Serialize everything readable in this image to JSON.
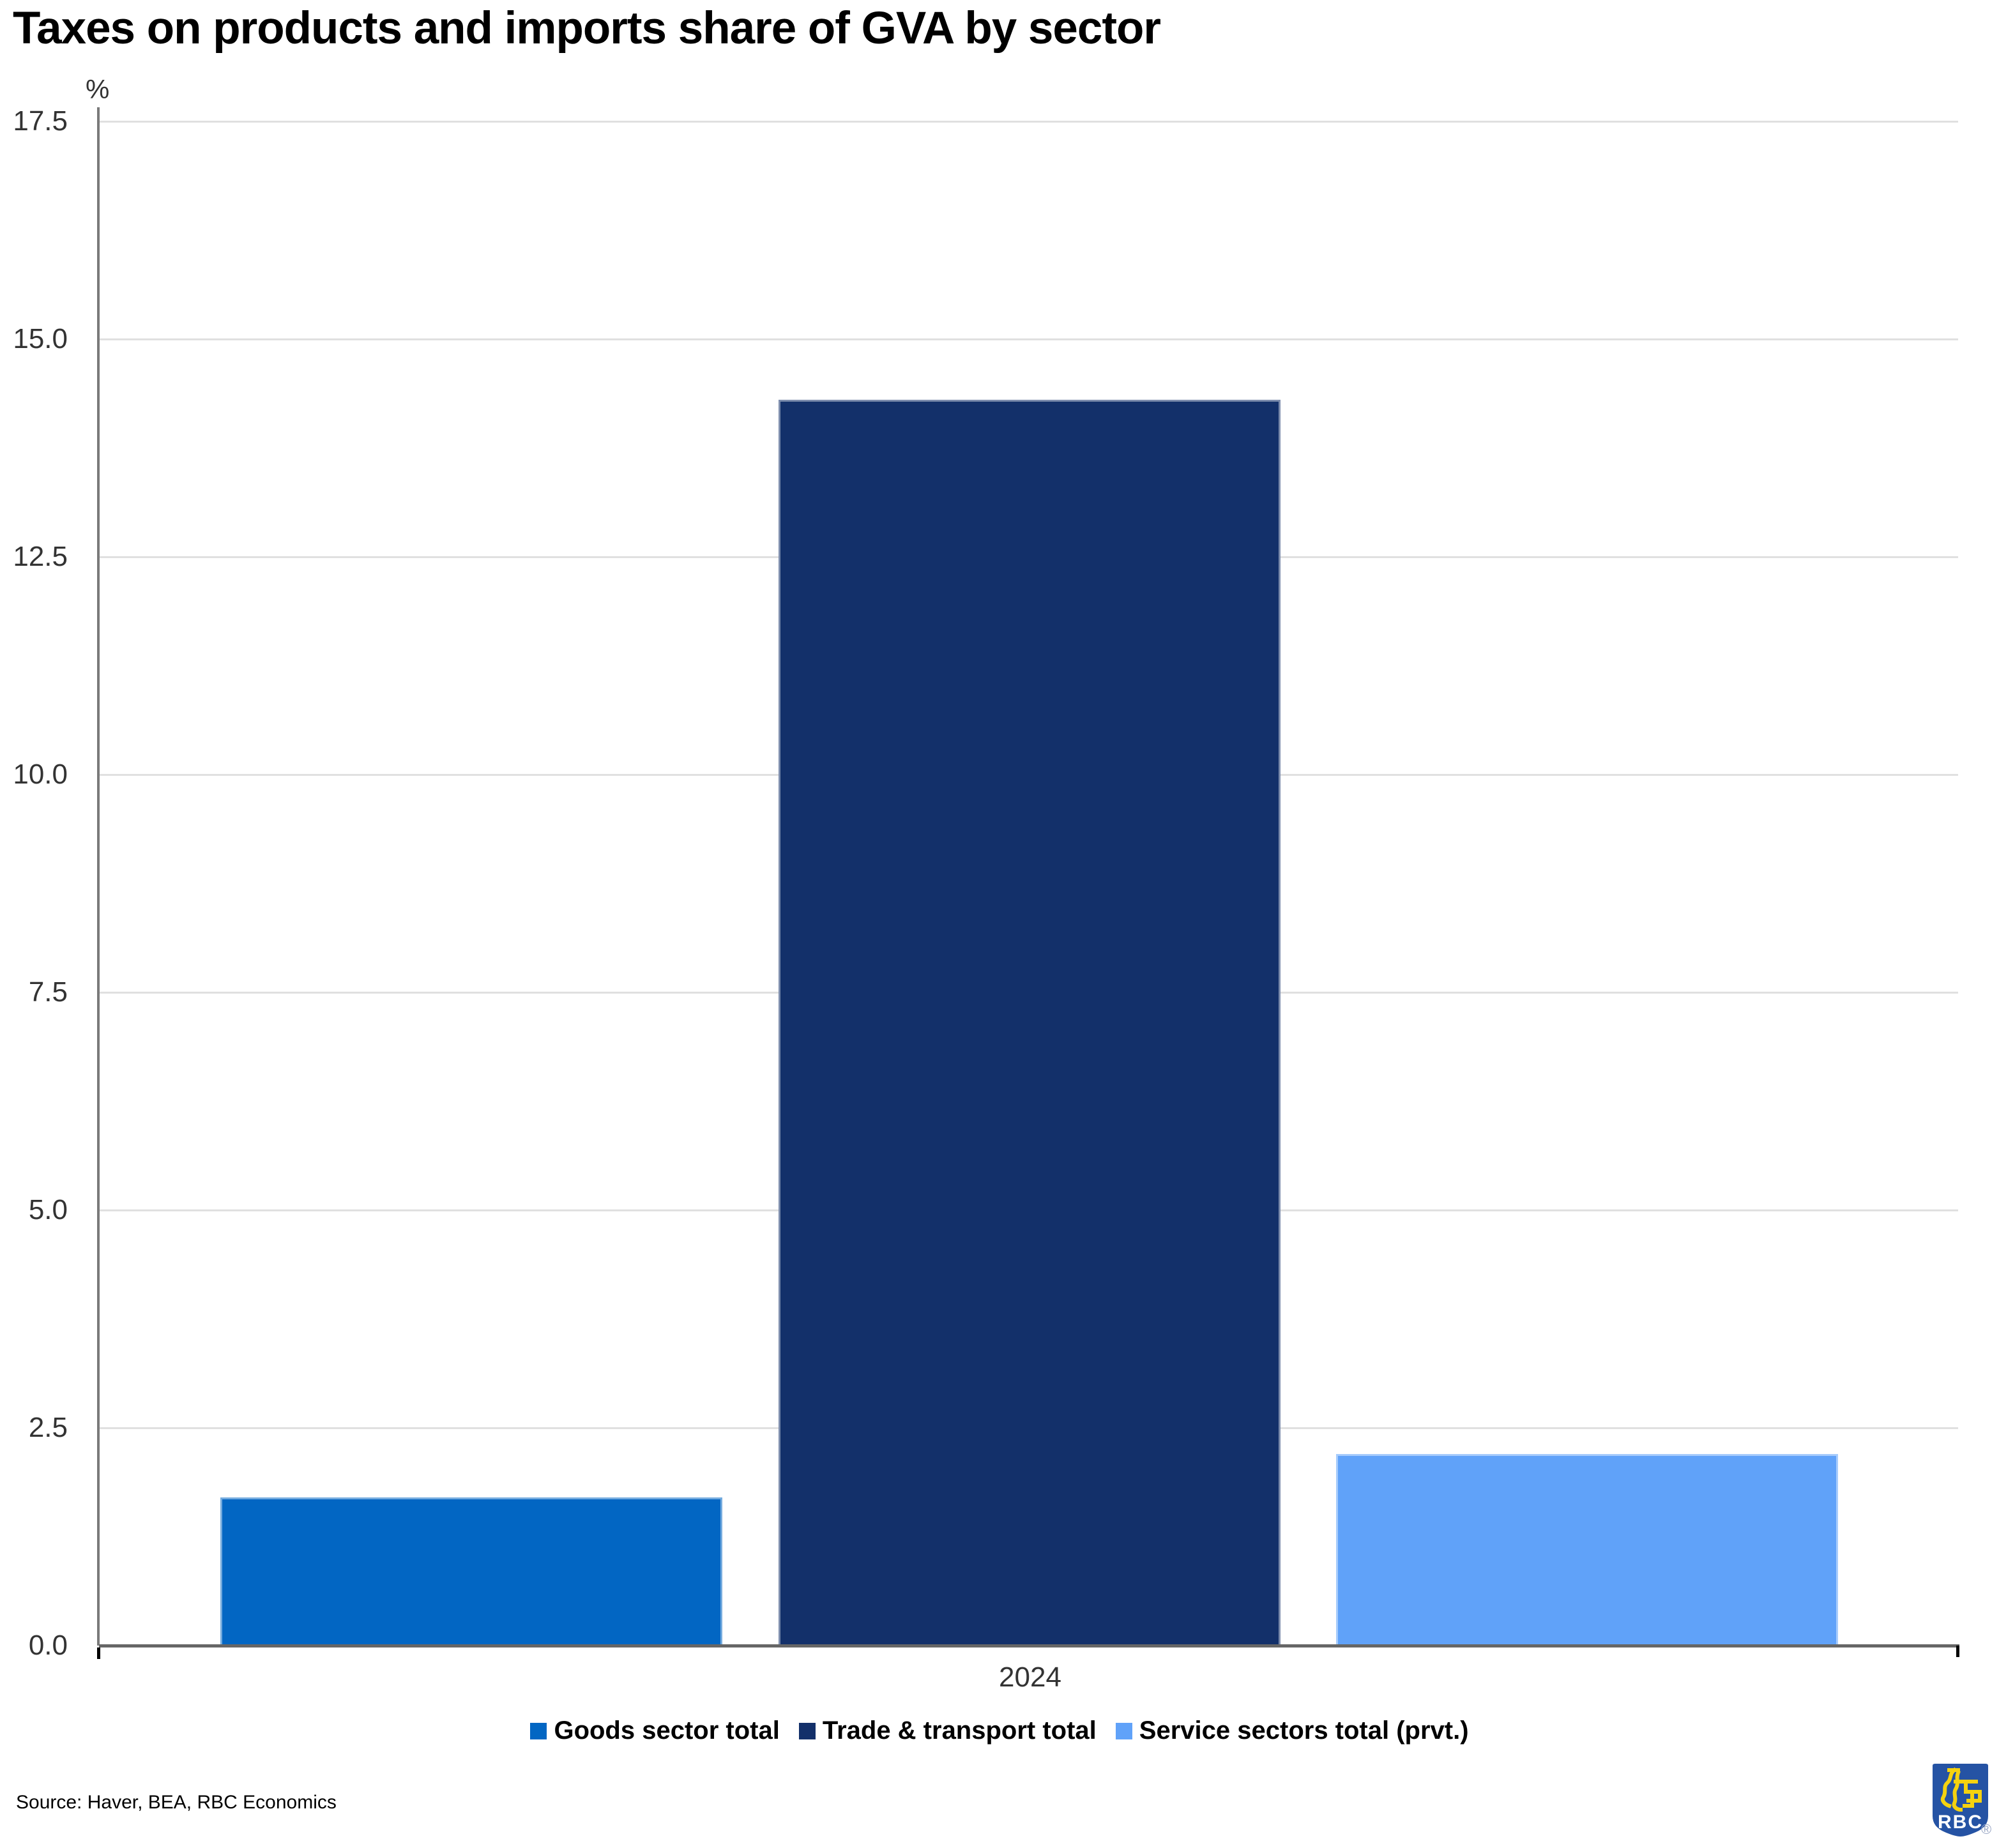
{
  "chart_data": {
    "type": "bar",
    "title": "Taxes on products and imports share of GVA by sector",
    "ylabel": "%",
    "xlabel": "",
    "ylim": [
      0,
      17.5
    ],
    "yticks": [
      "17.5",
      "15.0",
      "12.5",
      "10.0",
      "7.5",
      "5.0",
      "2.5",
      "0.0"
    ],
    "grid": true,
    "legend_position": "bottom",
    "categories": [
      "2024"
    ],
    "series": [
      {
        "name": "Goods sector total",
        "values": [
          1.7
        ],
        "color": "#0266c3"
      },
      {
        "name": "Trade & transport total",
        "values": [
          14.3
        ],
        "color": "#13306a"
      },
      {
        "name": "Service sectors total (prvt.)",
        "values": [
          2.2
        ],
        "color": "#60a2f9"
      }
    ]
  },
  "source_note": "Source: Haver, BEA, RBC Economics",
  "logo": {
    "text": "RBC",
    "registered_mark": "®",
    "shield_color": "#2553a4",
    "lion_color": "#f5d20f",
    "text_color": "#ffffff"
  }
}
